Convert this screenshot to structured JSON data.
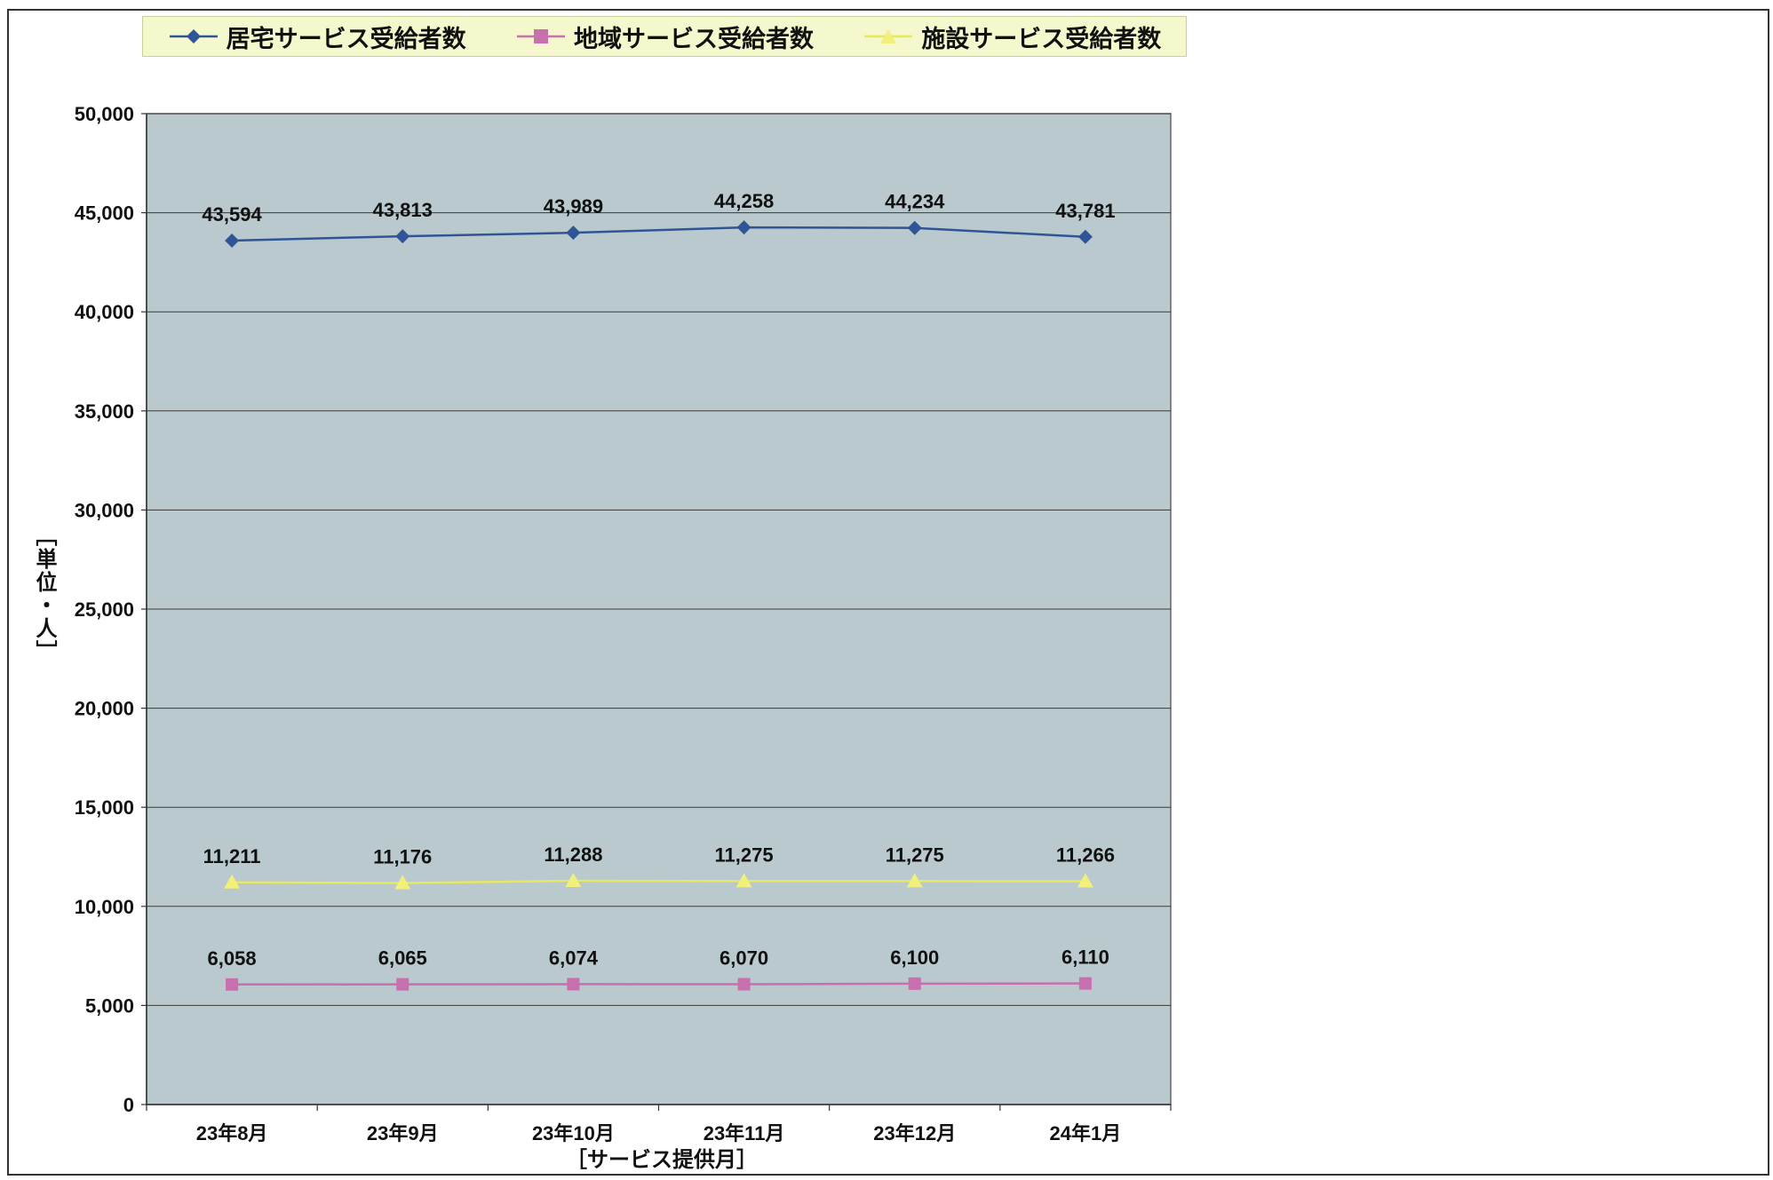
{
  "chart_data": {
    "type": "line",
    "categories": [
      "23年8月",
      "23年9月",
      "23年10月",
      "23年11月",
      "23年12月",
      "24年1月"
    ],
    "series": [
      {
        "name": "居宅サービス受給者数",
        "values": [
          43594,
          43813,
          43989,
          44258,
          44234,
          43781
        ],
        "labels": [
          "43,594",
          "43,813",
          "43,989",
          "44,258",
          "44,234",
          "43,781"
        ],
        "color": "#2f5597",
        "marker": "diamond"
      },
      {
        "name": "地域サービス受給者数",
        "values": [
          6058,
          6065,
          6074,
          6070,
          6100,
          6110
        ],
        "labels": [
          "6,058",
          "6,065",
          "6,074",
          "6,070",
          "6,100",
          "6,110"
        ],
        "color": "#c86fb0",
        "marker": "square"
      },
      {
        "name": "施設サービス受給者数",
        "values": [
          11211,
          11176,
          11288,
          11275,
          11275,
          11266
        ],
        "labels": [
          "11,211",
          "11,176",
          "11,288",
          "11,275",
          "11,275",
          "11,266"
        ],
        "color": "#f0f07a",
        "marker": "triangle"
      }
    ],
    "xlabel": "［サービス提供月］",
    "ylabel": "［単位・人］",
    "ylim": [
      0,
      50000
    ],
    "yticks": [
      0,
      5000,
      10000,
      15000,
      20000,
      25000,
      30000,
      35000,
      40000,
      45000,
      50000
    ],
    "ytick_labels": [
      "0",
      "5,000",
      "10,000",
      "15,000",
      "20,000",
      "25,000",
      "30,000",
      "35,000",
      "40,000",
      "45,000",
      "50,000"
    ],
    "grid": true,
    "legend_position": "top",
    "plot_background": "#b9c9cd"
  }
}
